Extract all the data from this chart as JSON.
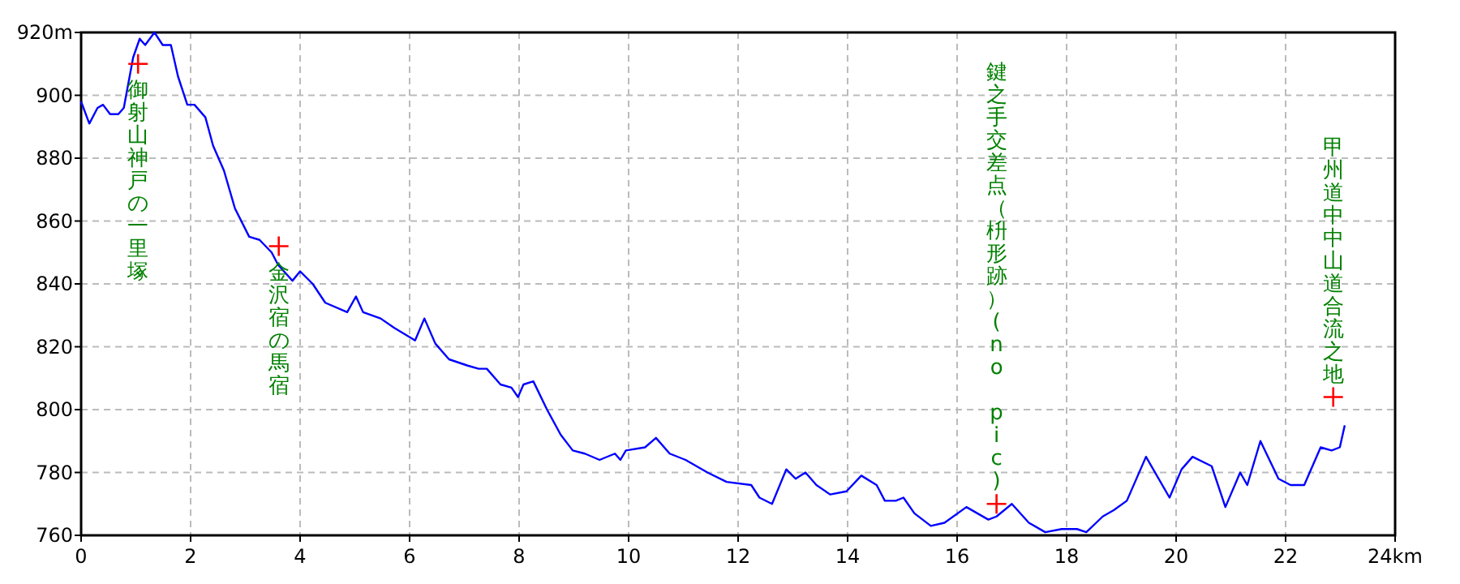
{
  "chart_data": {
    "type": "line",
    "xlim": [
      0,
      24
    ],
    "ylim": [
      760,
      920
    ],
    "xticks": [
      0,
      2,
      4,
      6,
      8,
      10,
      12,
      14,
      16,
      18,
      20,
      22,
      {
        "value": 24,
        "label": "24km"
      }
    ],
    "yticks": [
      760,
      780,
      800,
      820,
      840,
      860,
      880,
      900,
      {
        "value": 920,
        "label": "920m"
      }
    ],
    "grid": true,
    "series": [
      {
        "color": "#0000ff",
        "marker": "none",
        "line_style": "solid",
        "x": [
          0,
          0.15,
          0.3,
          0.4,
          0.53,
          0.68,
          0.78,
          0.95,
          1.07,
          1.17,
          1.34,
          1.49,
          1.64,
          1.77,
          1.94,
          2.07,
          2.27,
          2.41,
          2.61,
          2.81,
          3.07,
          3.26,
          3.48,
          3.6,
          3.86,
          4.0,
          4.23,
          4.46,
          4.86,
          5.02,
          5.15,
          5.47,
          5.72,
          6.1,
          6.27,
          6.47,
          6.72,
          7.06,
          7.26,
          7.41,
          7.66,
          7.86,
          7.98,
          8.08,
          8.26,
          8.51,
          8.76,
          8.98,
          9.2,
          9.47,
          9.75,
          9.85,
          9.95,
          10.3,
          10.5,
          10.75,
          11.04,
          11.44,
          11.79,
          12.24,
          12.39,
          12.62,
          12.88,
          13.05,
          13.23,
          13.43,
          13.68,
          13.98,
          14.25,
          14.53,
          14.68,
          14.88,
          15.02,
          15.22,
          15.52,
          15.77,
          16.17,
          16.57,
          16.72,
          17.0,
          17.31,
          17.61,
          17.91,
          18.19,
          18.36,
          18.66,
          18.86,
          19.1,
          19.45,
          19.88,
          20.1,
          20.3,
          20.65,
          20.9,
          21.17,
          21.3,
          21.54,
          21.87,
          22.09,
          22.34,
          22.64,
          22.84,
          22.99,
          23.08
        ],
        "values": [
          898,
          891,
          896,
          897,
          894,
          894,
          896,
          912,
          918,
          916,
          920,
          916,
          916,
          906,
          897,
          897,
          893,
          884,
          876,
          864,
          855,
          854,
          850,
          846,
          841,
          844,
          840,
          834,
          831,
          836,
          831,
          829,
          826,
          822,
          829,
          821,
          816,
          814,
          813,
          813,
          808,
          807,
          804,
          808,
          809,
          800,
          792,
          787,
          786,
          784,
          786,
          784,
          787,
          788,
          791,
          786,
          784,
          780,
          777,
          776,
          772,
          770,
          781,
          778,
          780,
          776,
          773,
          774,
          779,
          776,
          771,
          771,
          772,
          767,
          763,
          764,
          769,
          765,
          766,
          770,
          764,
          761,
          762,
          762,
          761,
          766,
          768,
          771,
          785,
          772,
          781,
          785,
          782,
          769,
          780,
          776,
          790,
          778,
          776,
          776,
          788,
          787,
          788,
          795
        ]
      },
      {
        "type": "scatter",
        "color": "#ff0000",
        "marker": "cross",
        "x": [
          1.04,
          3.61,
          16.72,
          22.87
        ],
        "values": [
          910,
          852,
          770,
          804
        ]
      }
    ],
    "annotations": [
      "御射山神戸の一里塚",
      "金沢宿の馬宿",
      "鍵之手交差点（枡形跡）(no pic)",
      "甲州道中中山道合流之地"
    ]
  }
}
